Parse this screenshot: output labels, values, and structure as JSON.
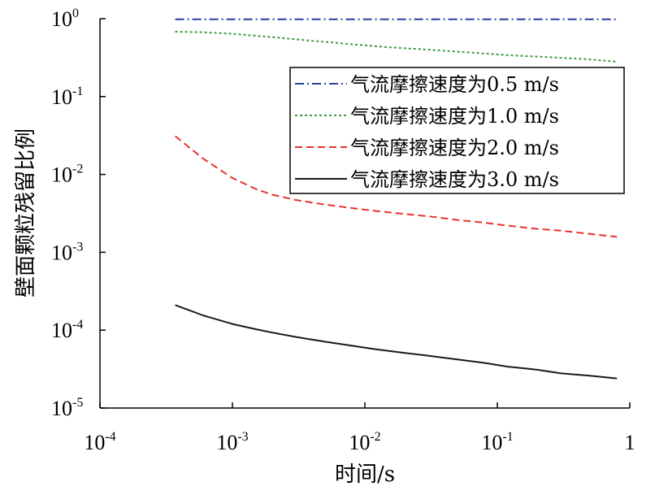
{
  "chart_data": {
    "type": "line",
    "xlabel": "时间/s",
    "ylabel": "壁面颗粒残留比例",
    "x_scale": "log",
    "y_scale": "log",
    "xlim": [
      0.0001,
      1
    ],
    "ylim": [
      1e-05,
      1
    ],
    "grid": false,
    "legend_position": "upper-right",
    "x_ticks": [
      {
        "base": "10",
        "exp": "-4",
        "value": 0.0001
      },
      {
        "base": "10",
        "exp": "-3",
        "value": 0.001
      },
      {
        "base": "10",
        "exp": "-2",
        "value": 0.01
      },
      {
        "base": "10",
        "exp": "-1",
        "value": 0.1
      },
      {
        "base": "1",
        "exp": "",
        "value": 1
      }
    ],
    "y_ticks": [
      {
        "base": "10",
        "exp": "0",
        "value": 1
      },
      {
        "base": "10",
        "exp": "-1",
        "value": 0.1
      },
      {
        "base": "10",
        "exp": "-2",
        "value": 0.01
      },
      {
        "base": "10",
        "exp": "-3",
        "value": 0.001
      },
      {
        "base": "10",
        "exp": "-4",
        "value": 0.0001
      },
      {
        "base": "10",
        "exp": "-5",
        "value": 1e-05
      }
    ],
    "series": [
      {
        "name": "气流摩擦速度为0.5 m/s",
        "color": "#2b3f9e",
        "dash": "dashdot",
        "x": [
          0.00037,
          0.001,
          0.01,
          0.1,
          0.8
        ],
        "y": [
          0.98,
          0.98,
          0.98,
          0.98,
          0.98
        ]
      },
      {
        "name": "气流摩擦速度为1.0 m/s",
        "color": "#3d9a3d",
        "dash": "dotted",
        "x": [
          0.00037,
          0.0006,
          0.001,
          0.002,
          0.004,
          0.008,
          0.015,
          0.03,
          0.06,
          0.12,
          0.25,
          0.5,
          0.8
        ],
        "y": [
          0.68,
          0.67,
          0.64,
          0.58,
          0.52,
          0.47,
          0.43,
          0.4,
          0.37,
          0.34,
          0.32,
          0.3,
          0.28
        ]
      },
      {
        "name": "气流摩擦速度为2.0 m/s",
        "color": "#e8322e",
        "dash": "dashed",
        "x": [
          0.00037,
          0.0006,
          0.001,
          0.0015,
          0.002,
          0.003,
          0.005,
          0.008,
          0.012,
          0.02,
          0.03,
          0.05,
          0.08,
          0.12,
          0.2,
          0.3,
          0.5,
          0.8
        ],
        "y": [
          0.031,
          0.016,
          0.009,
          0.0065,
          0.0055,
          0.0047,
          0.0041,
          0.0037,
          0.0034,
          0.0031,
          0.0029,
          0.0026,
          0.0024,
          0.0022,
          0.002,
          0.0019,
          0.00172,
          0.00158
        ]
      },
      {
        "name": "气流摩擦速度为3.0 m/s",
        "color": "#1a1a1a",
        "dash": "solid",
        "x": [
          0.00037,
          0.0006,
          0.001,
          0.0015,
          0.002,
          0.003,
          0.005,
          0.008,
          0.012,
          0.02,
          0.03,
          0.05,
          0.08,
          0.12,
          0.2,
          0.3,
          0.5,
          0.8
        ],
        "y": [
          0.00021,
          0.000155,
          0.00012,
          0.000103,
          9.3e-05,
          8.2e-05,
          7.1e-05,
          6.3e-05,
          5.7e-05,
          5.1e-05,
          4.7e-05,
          4.2e-05,
          3.8e-05,
          3.4e-05,
          3.1e-05,
          2.8e-05,
          2.6e-05,
          2.4e-05
        ]
      }
    ]
  }
}
